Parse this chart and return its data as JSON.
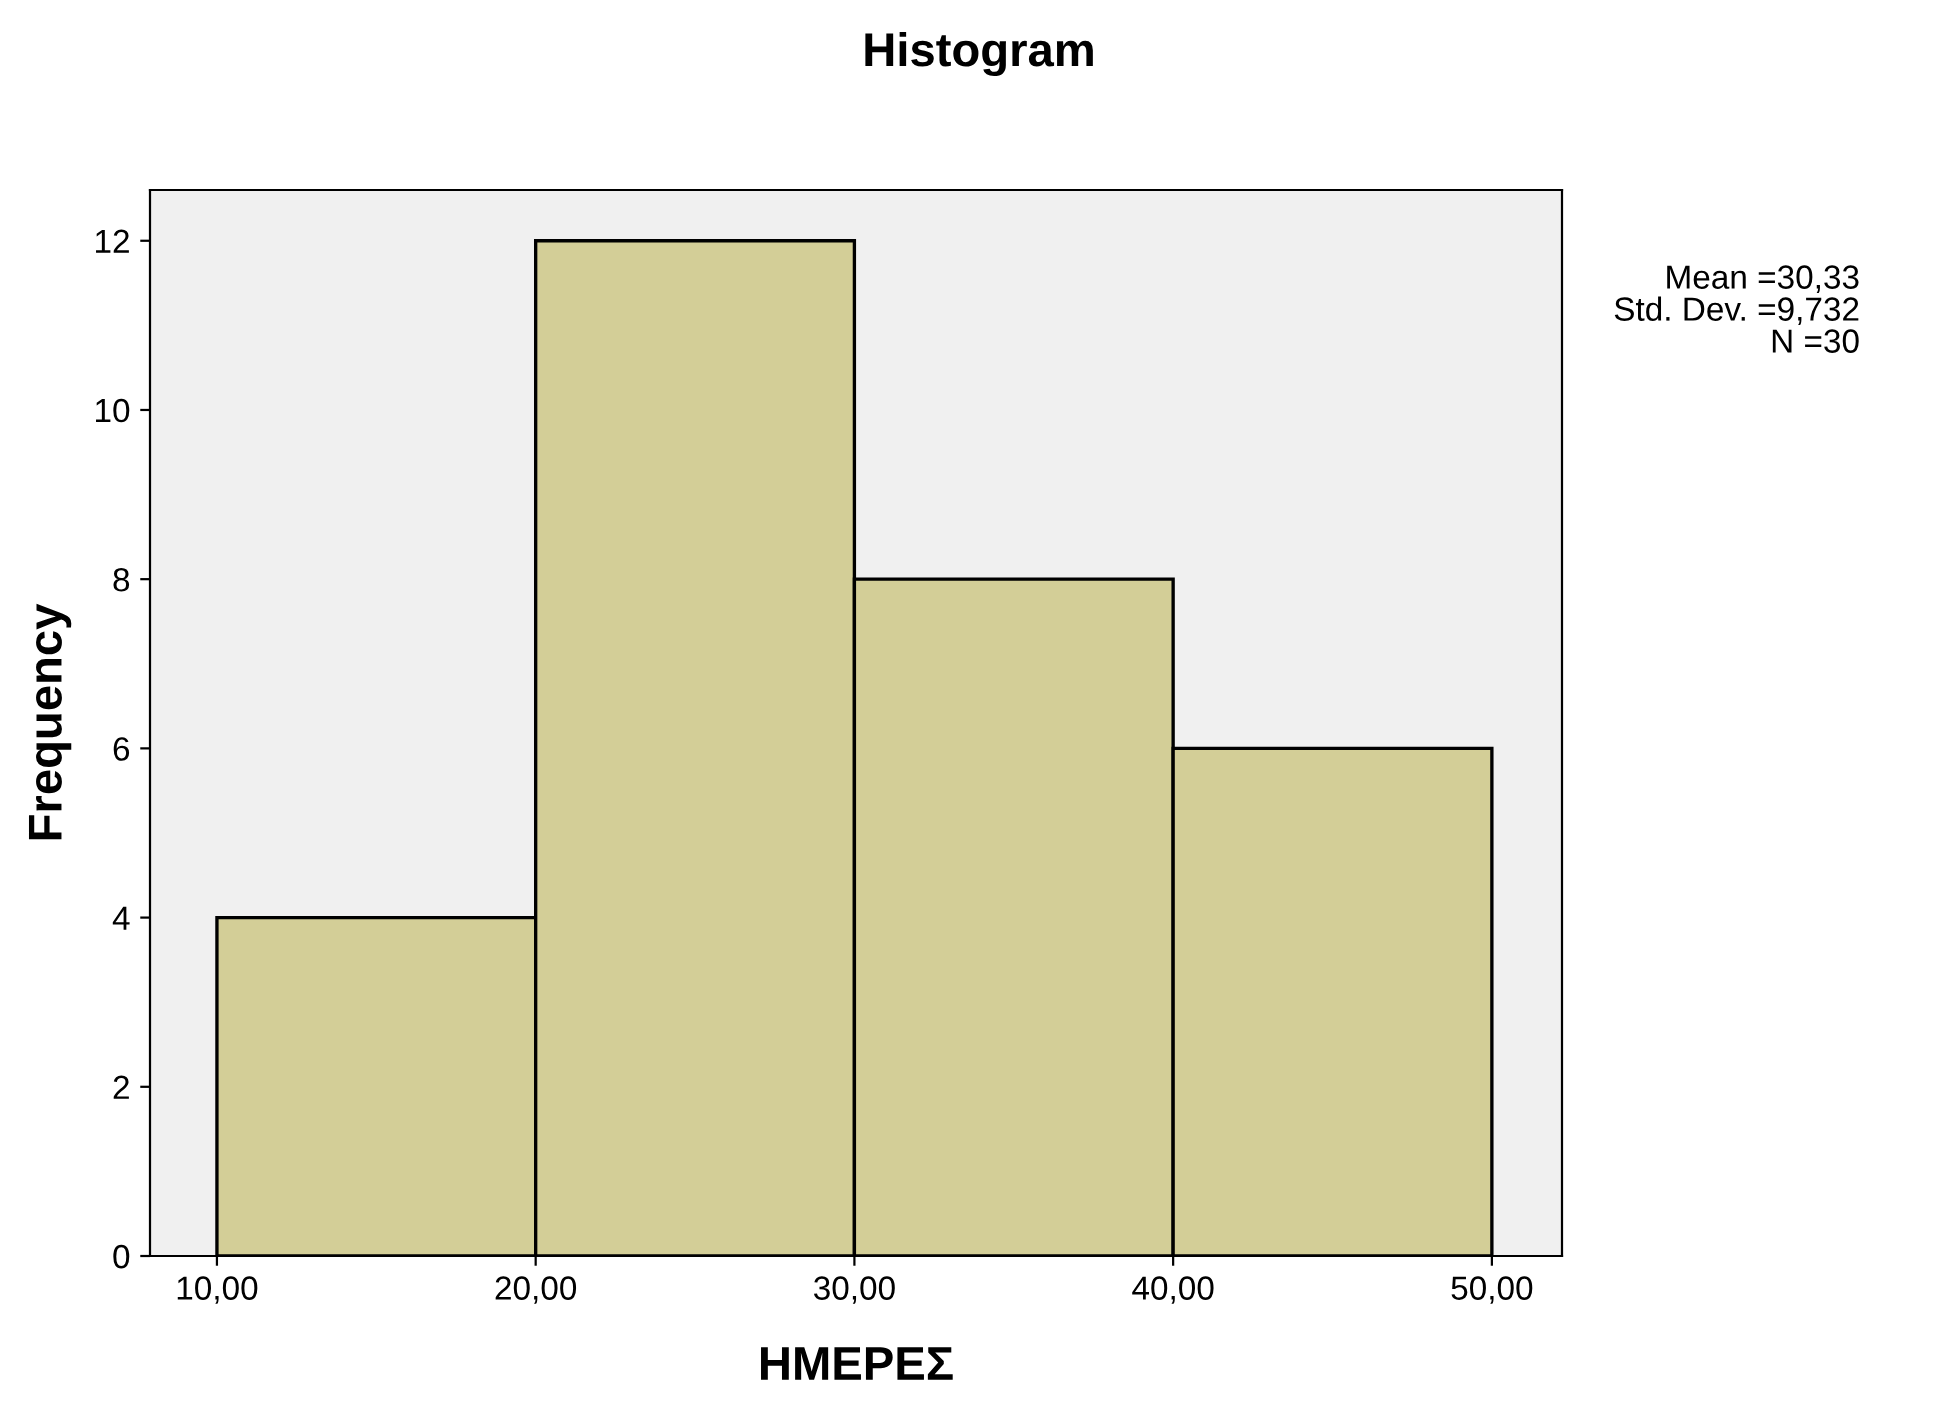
{
  "chart_data": {
    "type": "histogram",
    "title": "Histogram",
    "xlabel": "ΗΜΕΡΕΣ",
    "ylabel": "Frequency",
    "bins": [
      10,
      20,
      30,
      40,
      50
    ],
    "values": [
      4,
      12,
      8,
      6
    ],
    "color": "#d3ce97",
    "xlim": [
      7.9,
      52.2
    ],
    "ylim": [
      0,
      12.6
    ],
    "xticks": [
      {
        "value": 10,
        "label": "10,00"
      },
      {
        "value": 20,
        "label": "20,00"
      },
      {
        "value": 30,
        "label": "30,00"
      },
      {
        "value": 40,
        "label": "40,00"
      },
      {
        "value": 50,
        "label": "50,00"
      }
    ],
    "yticks": [
      0,
      2,
      4,
      6,
      8,
      10,
      12
    ],
    "grid": false,
    "annotations": [
      "Mean =30,33",
      "Std. Dev. =9,732",
      "N =30"
    ]
  }
}
